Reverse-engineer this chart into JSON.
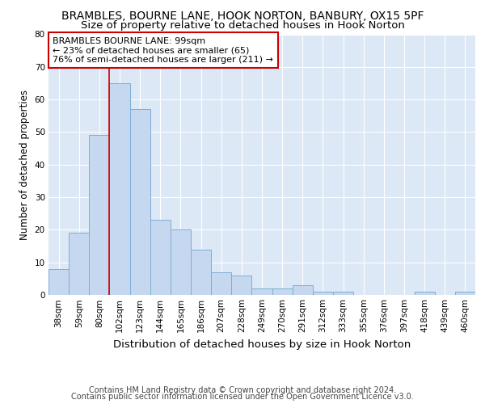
{
  "title": "BRAMBLES, BOURNE LANE, HOOK NORTON, BANBURY, OX15 5PF",
  "subtitle": "Size of property relative to detached houses in Hook Norton",
  "xlabel": "Distribution of detached houses by size in Hook Norton",
  "ylabel": "Number of detached properties",
  "categories": [
    "38sqm",
    "59sqm",
    "80sqm",
    "102sqm",
    "123sqm",
    "144sqm",
    "165sqm",
    "186sqm",
    "207sqm",
    "228sqm",
    "249sqm",
    "270sqm",
    "291sqm",
    "312sqm",
    "333sqm",
    "355sqm",
    "376sqm",
    "397sqm",
    "418sqm",
    "439sqm",
    "460sqm"
  ],
  "values": [
    8,
    19,
    49,
    65,
    57,
    23,
    20,
    14,
    7,
    6,
    2,
    2,
    3,
    1,
    1,
    0,
    0,
    0,
    1,
    0,
    1
  ],
  "bar_color": "#c5d8f0",
  "bar_edge_color": "#7bafd4",
  "fig_background_color": "#ffffff",
  "plot_background_color": "#dce8f5",
  "grid_color": "#ffffff",
  "ylim": [
    0,
    80
  ],
  "yticks": [
    0,
    10,
    20,
    30,
    40,
    50,
    60,
    70,
    80
  ],
  "vline_x_index": 3,
  "vline_color": "#cc0000",
  "annotation_text": "BRAMBLES BOURNE LANE: 99sqm\n← 23% of detached houses are smaller (65)\n76% of semi-detached houses are larger (211) →",
  "annotation_box_color": "white",
  "annotation_box_edge": "#cc0000",
  "footer1": "Contains HM Land Registry data © Crown copyright and database right 2024.",
  "footer2": "Contains public sector information licensed under the Open Government Licence v3.0.",
  "title_fontsize": 10,
  "subtitle_fontsize": 9.5,
  "xlabel_fontsize": 9.5,
  "ylabel_fontsize": 8.5,
  "tick_fontsize": 7.5,
  "annotation_fontsize": 8,
  "footer_fontsize": 7
}
